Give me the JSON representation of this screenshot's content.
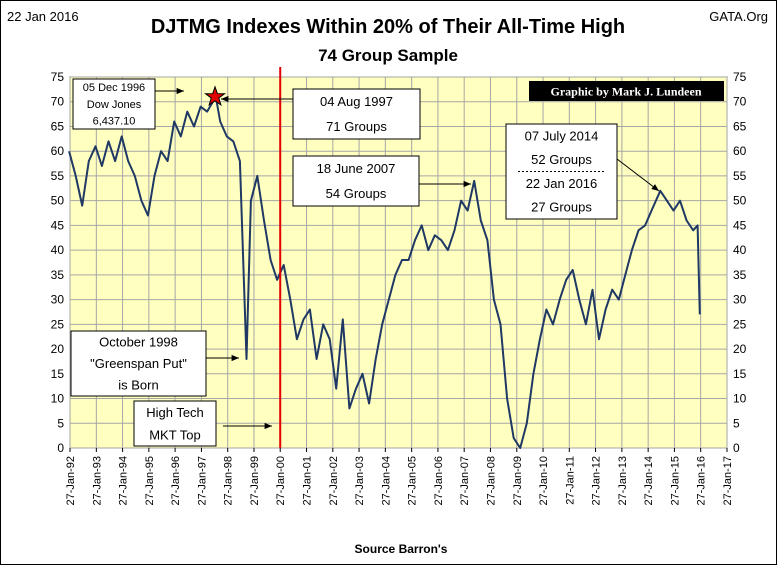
{
  "header": {
    "date": "22 Jan 2016",
    "site": "GATA.Org",
    "title": "DJTMG Indexes  Within 20% of Their All-Time High",
    "subtitle": "74 Group Sample",
    "source": "Source Barron's"
  },
  "credit": "Graphic by Mark J. Lundeen",
  "annotations": [
    {
      "id": "dec1996",
      "lines": [
        "05 Dec 1996",
        "Dow Jones",
        "6,437.10"
      ]
    },
    {
      "id": "aug1997",
      "lines": [
        "04 Aug 1997",
        "71 Groups"
      ]
    },
    {
      "id": "jun2007",
      "lines": [
        "18 June 2007",
        "54 Groups"
      ]
    },
    {
      "id": "jul2014",
      "lines": [
        "07 July 2014",
        "52 Groups",
        "22 Jan 2016",
        "27 Groups"
      ]
    },
    {
      "id": "oct1998",
      "lines": [
        "October 1998",
        "\"Greenspan Put\"",
        "is Born"
      ]
    },
    {
      "id": "techtop",
      "lines": [
        "High Tech",
        "MKT Top"
      ]
    }
  ],
  "colors": {
    "plot_bg": "#FFFFC0",
    "line": "#1F3864",
    "grid": "#A6A6A6",
    "marker_line": "#E00000",
    "star": "#E00000",
    "credit_bg": "#000000",
    "credit_text": "#FFFFFF"
  },
  "chart_data": {
    "type": "line",
    "title": "DJTMG Indexes  Within 20% of Their All-Time High",
    "subtitle": "74 Group Sample",
    "xlabel": "Source Barron's",
    "ylabel": "",
    "ylim": [
      0,
      75
    ],
    "yticks": [
      0,
      5,
      10,
      15,
      20,
      25,
      30,
      35,
      40,
      45,
      50,
      55,
      60,
      65,
      70,
      75
    ],
    "xlim": [
      "1992-01-27",
      "2017-01-27"
    ],
    "xticks": [
      "27-Jan-92",
      "27-Jan-93",
      "27-Jan-94",
      "27-Jan-95",
      "27-Jan-96",
      "27-Jan-97",
      "27-Jan-98",
      "27-Jan-99",
      "27-Jan-00",
      "27-Jan-01",
      "27-Jan-02",
      "27-Jan-03",
      "27-Jan-04",
      "27-Jan-05",
      "27-Jan-06",
      "27-Jan-07",
      "27-Jan-08",
      "27-Jan-09",
      "27-Jan-10",
      "27-Jan-11",
      "27-Jan-12",
      "27-Jan-13",
      "27-Jan-14",
      "27-Jan-15",
      "27-Jan-16",
      "27-Jan-17"
    ],
    "grid": true,
    "vertical_marker": "2000-01-27",
    "star_point": {
      "x": "1997-08-04",
      "y": 71
    },
    "series": [
      {
        "x": [
          "1992-01",
          "1992-04",
          "1992-07",
          "1992-10",
          "1993-01",
          "1993-04",
          "1993-07",
          "1993-10",
          "1994-01",
          "1994-04",
          "1994-07",
          "1994-10",
          "1995-01",
          "1995-04",
          "1995-07",
          "1995-10",
          "1996-01",
          "1996-04",
          "1996-07",
          "1996-10",
          "1997-01",
          "1997-04",
          "1997-08",
          "1997-10",
          "1998-01",
          "1998-04",
          "1998-07",
          "1998-10",
          "1998-12",
          "1999-03",
          "1999-06",
          "1999-09",
          "1999-12",
          "2000-03",
          "2000-06",
          "2000-09",
          "2000-12",
          "2001-03",
          "2001-06",
          "2001-09",
          "2001-12",
          "2002-03",
          "2002-06",
          "2002-09",
          "2002-12",
          "2003-03",
          "2003-06",
          "2003-09",
          "2003-12",
          "2004-03",
          "2004-06",
          "2004-09",
          "2004-12",
          "2005-03",
          "2005-06",
          "2005-09",
          "2005-12",
          "2006-03",
          "2006-06",
          "2006-09",
          "2006-12",
          "2007-03",
          "2007-06",
          "2007-09",
          "2007-12",
          "2008-03",
          "2008-06",
          "2008-09",
          "2008-12",
          "2009-03",
          "2009-06",
          "2009-09",
          "2009-12",
          "2010-03",
          "2010-06",
          "2010-09",
          "2010-12",
          "2011-03",
          "2011-06",
          "2011-09",
          "2011-12",
          "2012-03",
          "2012-06",
          "2012-09",
          "2012-12",
          "2013-03",
          "2013-06",
          "2013-09",
          "2013-12",
          "2014-03",
          "2014-07",
          "2014-10",
          "2015-01",
          "2015-04",
          "2015-07",
          "2015-10",
          "2015-12",
          "2016-01"
        ],
        "y": [
          60,
          55,
          49,
          58,
          61,
          57,
          62,
          58,
          63,
          58,
          55,
          50,
          47,
          55,
          60,
          58,
          66,
          63,
          68,
          65,
          69,
          68,
          71,
          66,
          63,
          62,
          58,
          18,
          50,
          55,
          46,
          38,
          34,
          37,
          30,
          22,
          26,
          28,
          18,
          25,
          22,
          12,
          26,
          8,
          12,
          15,
          9,
          18,
          25,
          30,
          35,
          38,
          38,
          42,
          45,
          40,
          43,
          42,
          40,
          44,
          50,
          48,
          54,
          46,
          42,
          30,
          25,
          10,
          2,
          0,
          5,
          15,
          22,
          28,
          25,
          30,
          34,
          36,
          30,
          25,
          32,
          22,
          28,
          32,
          30,
          35,
          40,
          44,
          45,
          48,
          52,
          50,
          48,
          50,
          46,
          44,
          45,
          27
        ]
      }
    ]
  }
}
